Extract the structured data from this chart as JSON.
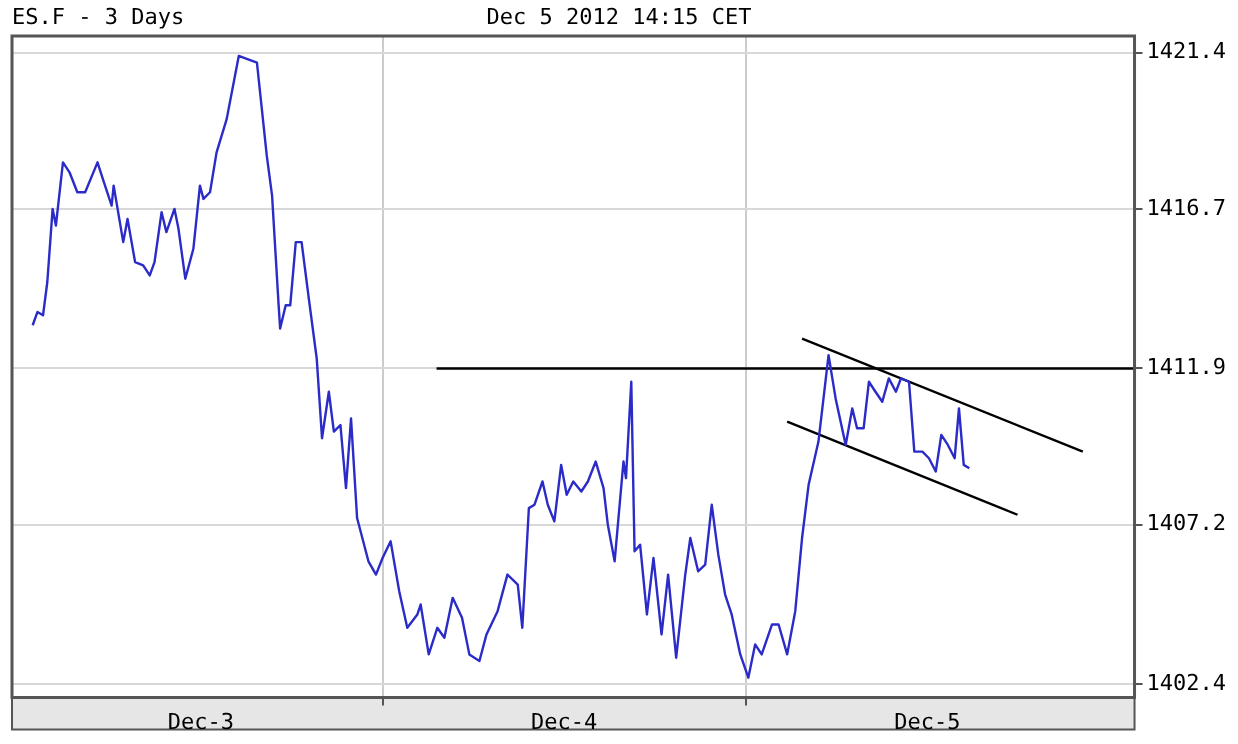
{
  "chart_data": {
    "type": "line",
    "title": "Dec 5 2012 14:15 CET",
    "subtitle": "ES.F - 3 Days",
    "xlim": [
      "2012-12-02T23:31",
      "2012-12-06T01:41"
    ],
    "xticks": [
      {
        "value": "2012-12-03T12:00",
        "label": "Dec-3"
      },
      {
        "value": "2012-12-04T00:00",
        "label": null
      },
      {
        "value": "2012-12-04T12:00",
        "label": "Dec-4"
      },
      {
        "value": "2012-12-05T00:00",
        "label": null
      },
      {
        "value": "2012-12-05T12:00",
        "label": "Dec-5"
      }
    ],
    "ylim": [
      1402.0,
      1421.9
    ],
    "yticks": [
      1402.4,
      1407.2,
      1411.9,
      1416.7,
      1421.4
    ],
    "grid": true,
    "legend": false,
    "marker": "none",
    "line_style": "solid",
    "series": [
      {
        "color": "#2b2bc8",
        "x": [
          "2012-12-03T00:53",
          "2012-12-03T01:12",
          "2012-12-03T01:34",
          "2012-12-03T01:51",
          "2012-12-03T02:12",
          "2012-12-03T02:25",
          "2012-12-03T02:53",
          "2012-12-03T03:19",
          "2012-12-03T03:50",
          "2012-12-03T04:21",
          "2012-12-03T05:10",
          "2012-12-03T05:31",
          "2012-12-03T06:06",
          "2012-12-03T06:14",
          "2012-12-03T06:52",
          "2012-12-03T07:09",
          "2012-12-03T07:39",
          "2012-12-03T08:11",
          "2012-12-03T08:37",
          "2012-12-03T08:56",
          "2012-12-03T09:24",
          "2012-12-03T09:43",
          "2012-12-03T10:15",
          "2012-12-03T10:31",
          "2012-12-03T10:58",
          "2012-12-03T11:30",
          "2012-12-03T11:56",
          "2012-12-03T12:10",
          "2012-12-03T12:36",
          "2012-12-03T13:02",
          "2012-12-03T13:42",
          "2012-12-03T14:30",
          "2012-12-03T15:07",
          "2012-12-03T15:42",
          "2012-12-03T16:21",
          "2012-12-03T16:42",
          "2012-12-03T17:08",
          "2012-12-03T17:14",
          "2012-12-03T17:36",
          "2012-12-03T17:54",
          "2012-12-03T18:16",
          "2012-12-03T18:39",
          "2012-12-03T19:06",
          "2012-12-03T19:39",
          "2012-12-03T20:00",
          "2012-12-03T20:27",
          "2012-12-03T20:47",
          "2012-12-03T21:13",
          "2012-12-03T21:35",
          "2012-12-03T21:55",
          "2012-12-03T22:19",
          "2012-12-03T23:04",
          "2012-12-03T23:34",
          "2012-12-04T00:00",
          "2012-12-04T00:32",
          "2012-12-04T01:06",
          "2012-12-04T01:38",
          "2012-12-04T02:18",
          "2012-12-04T02:31",
          "2012-12-04T03:03",
          "2012-12-04T03:37",
          "2012-12-04T04:05",
          "2012-12-04T04:38",
          "2012-12-04T05:15",
          "2012-12-04T05:44",
          "2012-12-04T06:24",
          "2012-12-04T06:52",
          "2012-12-04T07:36",
          "2012-12-04T08:15",
          "2012-12-04T08:56",
          "2012-12-04T09:14",
          "2012-12-04T09:40",
          "2012-12-04T10:02",
          "2012-12-04T10:34",
          "2012-12-04T10:55",
          "2012-12-04T11:21",
          "2012-12-04T11:48",
          "2012-12-04T12:10",
          "2012-12-04T12:36",
          "2012-12-04T13:08",
          "2012-12-04T13:34",
          "2012-12-04T14:05",
          "2012-12-04T14:36",
          "2012-12-04T14:53",
          "2012-12-04T15:20",
          "2012-12-04T15:55",
          "2012-12-04T16:05",
          "2012-12-04T16:26",
          "2012-12-04T16:39",
          "2012-12-04T17:01",
          "2012-12-04T17:28",
          "2012-12-04T17:54",
          "2012-12-04T18:26",
          "2012-12-04T18:52",
          "2012-12-04T19:24",
          "2012-12-04T20:00",
          "2012-12-04T20:20",
          "2012-12-04T20:51",
          "2012-12-04T21:19",
          "2012-12-04T21:45",
          "2012-12-04T22:11",
          "2012-12-04T22:38",
          "2012-12-04T23:04",
          "2012-12-04T23:38",
          "2012-12-05T00:10",
          "2012-12-05T00:37",
          "2012-12-05T01:03",
          "2012-12-05T01:44",
          "2012-12-05T02:10",
          "2012-12-05T02:44",
          "2012-12-05T03:16",
          "2012-12-05T03:43",
          "2012-12-05T04:09",
          "2012-12-05T04:48",
          "2012-12-05T05:28",
          "2012-12-05T05:56",
          "2012-12-05T06:36",
          "2012-12-05T07:02",
          "2012-12-05T07:21",
          "2012-12-05T07:47",
          "2012-12-05T08:08",
          "2012-12-05T08:34",
          "2012-12-05T09:01",
          "2012-12-05T09:27",
          "2012-12-05T09:55",
          "2012-12-05T10:15",
          "2012-12-05T10:47",
          "2012-12-05T11:08",
          "2012-12-05T11:40",
          "2012-12-05T12:06",
          "2012-12-05T12:33",
          "2012-12-05T12:55",
          "2012-12-05T13:21",
          "2012-12-05T13:48",
          "2012-12-05T14:05",
          "2012-12-05T14:24",
          "2012-12-05T14:46"
        ],
        "values": [
          1413.2,
          1413.6,
          1413.5,
          1414.5,
          1416.7,
          1416.2,
          1418.1,
          1417.8,
          1417.2,
          1417.2,
          1418.1,
          1417.6,
          1416.8,
          1417.4,
          1415.7,
          1416.4,
          1415.1,
          1415.0,
          1414.7,
          1415.1,
          1416.6,
          1416.0,
          1416.7,
          1416.1,
          1414.6,
          1415.5,
          1417.4,
          1417.0,
          1417.2,
          1418.4,
          1419.4,
          1421.3,
          1421.2,
          1421.1,
          1418.3,
          1417.1,
          1413.8,
          1413.1,
          1413.8,
          1413.8,
          1415.7,
          1415.7,
          1414.1,
          1412.2,
          1409.8,
          1411.2,
          1410.0,
          1410.2,
          1408.3,
          1410.4,
          1407.4,
          1406.1,
          1405.7,
          1406.2,
          1406.7,
          1405.2,
          1404.1,
          1404.5,
          1404.8,
          1403.3,
          1404.1,
          1403.8,
          1405.0,
          1404.4,
          1403.3,
          1403.1,
          1403.9,
          1404.6,
          1405.7,
          1405.4,
          1404.1,
          1407.7,
          1407.8,
          1408.5,
          1407.8,
          1407.3,
          1409.0,
          1408.1,
          1408.5,
          1408.2,
          1408.5,
          1409.1,
          1408.3,
          1407.2,
          1406.1,
          1409.1,
          1408.6,
          1411.5,
          1406.4,
          1406.6,
          1404.5,
          1406.2,
          1403.9,
          1405.7,
          1403.2,
          1405.7,
          1406.8,
          1405.8,
          1406.0,
          1407.8,
          1406.3,
          1405.1,
          1404.5,
          1403.3,
          1402.6,
          1403.6,
          1403.3,
          1404.2,
          1404.2,
          1403.3,
          1404.6,
          1406.8,
          1408.4,
          1409.7,
          1412.3,
          1411.0,
          1409.6,
          1410.7,
          1410.1,
          1410.1,
          1411.5,
          1411.2,
          1410.9,
          1411.6,
          1411.2,
          1411.6,
          1411.5,
          1409.4,
          1409.4,
          1409.2,
          1408.8,
          1409.9,
          1409.6,
          1409.2,
          1410.7,
          1409.0,
          1408.9
        ]
      },
      {
        "color": "#000000",
        "x": [
          "2012-12-04T03:34",
          "2012-12-06T01:41"
        ],
        "values": [
          1411.9,
          1411.9
        ]
      },
      {
        "color": "#000000",
        "x": [
          "2012-12-05T03:43",
          "2012-12-05T22:16"
        ],
        "values": [
          1412.8,
          1409.4
        ]
      },
      {
        "color": "#000000",
        "x": [
          "2012-12-05T02:44",
          "2012-12-05T17:57"
        ],
        "values": [
          1410.3,
          1407.5
        ]
      }
    ]
  }
}
